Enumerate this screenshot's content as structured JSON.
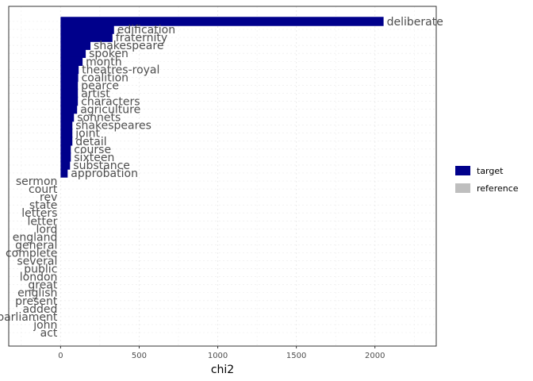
{
  "colors": {
    "target": "#00008B",
    "reference": "#BEBEBE",
    "grid": "#EBEBEB",
    "panel_border": "#333333",
    "label": "#4D4D4D"
  },
  "chart_data": {
    "type": "bar",
    "orientation": "horizontal",
    "title": "",
    "xlabel": "chi2",
    "ylabel": "",
    "xlim": [
      -330,
      2390
    ],
    "xticks": [
      0,
      500,
      1000,
      1500,
      2000
    ],
    "grid": true,
    "legend_position": "right",
    "series": [
      {
        "name": "target",
        "color": "#00008B",
        "categories": [
          "deliberate",
          "edification",
          "fraternity",
          "shakespeare",
          "spoken",
          "month",
          "theatres-royal",
          "coalition",
          "pearce",
          "artist",
          "characters",
          "agriculture",
          "sonnets",
          "shakespeares",
          "joint",
          "detail",
          "course",
          "sixteen",
          "substance",
          "approbation"
        ],
        "values": [
          2055,
          340,
          330,
          190,
          160,
          140,
          115,
          112,
          110,
          110,
          110,
          105,
          85,
          75,
          75,
          75,
          65,
          65,
          60,
          45
        ]
      },
      {
        "name": "reference",
        "color": "#BEBEBE",
        "categories": [
          "sermon",
          "court",
          "rev",
          "state",
          "letters",
          "letter",
          "lord",
          "england",
          "general",
          "complete",
          "several",
          "public",
          "london",
          "great",
          "english",
          "present",
          "added",
          "parliament",
          "john",
          "act"
        ],
        "values": [
          0,
          0,
          0,
          0,
          0,
          0,
          0,
          0,
          0,
          0,
          0,
          0,
          0,
          0,
          0,
          0,
          0,
          0,
          0,
          0
        ]
      }
    ]
  }
}
